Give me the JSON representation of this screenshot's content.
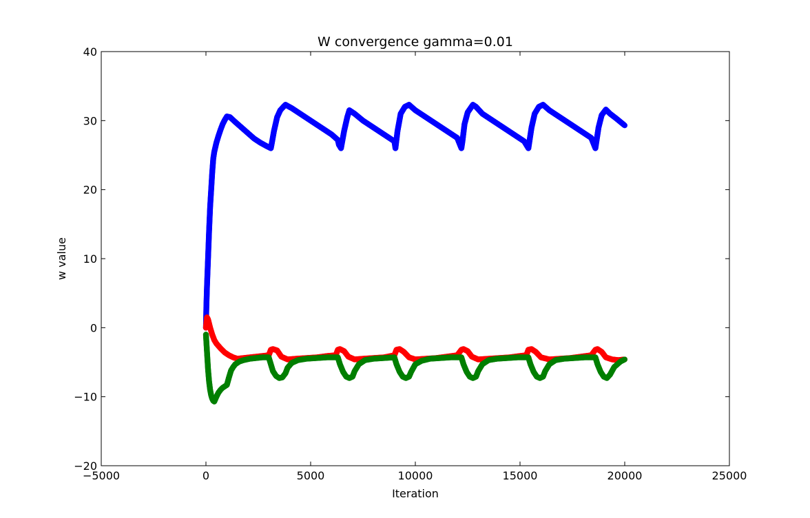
{
  "chart_data": {
    "type": "scatter",
    "title": "W convergence gamma=0.01",
    "xlabel": "Iteration",
    "ylabel": "w value",
    "xlim": [
      -5000,
      25000
    ],
    "ylim": [
      -20,
      40
    ],
    "xticks": [
      -5000,
      0,
      5000,
      10000,
      15000,
      20000,
      25000
    ],
    "xtick_labels": [
      "−5000",
      "0",
      "5000",
      "10000",
      "15000",
      "20000",
      "25000"
    ],
    "yticks": [
      -20,
      -10,
      0,
      10,
      20,
      30,
      40
    ],
    "ytick_labels": [
      "−20",
      "−10",
      "0",
      "10",
      "20",
      "30",
      "40"
    ],
    "grid": false,
    "series": [
      {
        "color": "#0000ff",
        "x": [
          0,
          20,
          50,
          100,
          150,
          200,
          250,
          300,
          350,
          400,
          500,
          600,
          700,
          800,
          900,
          1000,
          1150,
          1400,
          1700,
          2000,
          2300,
          2600,
          2900,
          3100,
          3150,
          3250,
          3400,
          3550,
          3700,
          3800,
          4100,
          4500,
          5000,
          5500,
          6000,
          6300,
          6350,
          6450,
          6600,
          6750,
          6850,
          7100,
          7500,
          8000,
          8500,
          9000,
          9050,
          9150,
          9300,
          9500,
          9700,
          10000,
          10500,
          11000,
          11500,
          12000,
          12200,
          12250,
          12350,
          12500,
          12750,
          12900,
          13200,
          13700,
          14200,
          14700,
          15200,
          15400,
          15450,
          15550,
          15700,
          15900,
          16100,
          16400,
          16900,
          17400,
          17900,
          18400,
          18600,
          18650,
          18750,
          18900,
          19100,
          19300,
          19600,
          20000
        ],
        "y": [
          0,
          3,
          6,
          10,
          14,
          17.5,
          20,
          22.5,
          24.5,
          25.5,
          26.8,
          27.8,
          28.7,
          29.5,
          30.1,
          30.6,
          30.5,
          29.8,
          29,
          28.2,
          27.4,
          26.8,
          26.3,
          26,
          26.8,
          28.5,
          30.5,
          31.5,
          32,
          32.3,
          31.8,
          31,
          30,
          29,
          28,
          27.2,
          26.5,
          26,
          28.5,
          30.5,
          31.5,
          31,
          30,
          29,
          28,
          27,
          26,
          28.5,
          31,
          32,
          32.3,
          31.5,
          30.5,
          29.5,
          28.5,
          27.5,
          26,
          27,
          29.5,
          31.2,
          32.3,
          32,
          31,
          30,
          29,
          28,
          27,
          26,
          27,
          29,
          31,
          32,
          32.3,
          31.5,
          30.5,
          29.5,
          28.5,
          27.5,
          26,
          27,
          29,
          30.8,
          31.6,
          31,
          30.3,
          29.3
        ]
      },
      {
        "color": "#ff0000",
        "x": [
          0,
          50,
          100,
          200,
          300,
          400,
          500,
          700,
          900,
          1100,
          1300,
          1500,
          1800,
          2100,
          2400,
          2700,
          3000,
          3100,
          3200,
          3400,
          3600,
          3900,
          4300,
          4800,
          5300,
          5800,
          6200,
          6300,
          6400,
          6600,
          6800,
          7100,
          7500,
          8000,
          8500,
          9000,
          9100,
          9250,
          9450,
          9700,
          10000,
          10500,
          11000,
          11500,
          12000,
          12200,
          12300,
          12500,
          12700,
          13000,
          13500,
          14000,
          14500,
          15000,
          15300,
          15400,
          15550,
          15750,
          16000,
          16400,
          16900,
          17400,
          17900,
          18400,
          18600,
          18700,
          18900,
          19100,
          19400,
          19700,
          20000
        ],
        "y": [
          0,
          1.5,
          1.2,
          0,
          -1,
          -1.8,
          -2.3,
          -3,
          -3.6,
          -4,
          -4.3,
          -4.5,
          -4.4,
          -4.3,
          -4.2,
          -4.1,
          -4,
          -3.2,
          -3.1,
          -3.3,
          -4.2,
          -4.6,
          -4.5,
          -4.4,
          -4.3,
          -4.1,
          -4,
          -3.2,
          -3.1,
          -3.4,
          -4.2,
          -4.6,
          -4.5,
          -4.4,
          -4.3,
          -4,
          -3.2,
          -3.1,
          -3.5,
          -4.3,
          -4.6,
          -4.5,
          -4.4,
          -4.2,
          -4,
          -3.2,
          -3.1,
          -3.4,
          -4.2,
          -4.6,
          -4.5,
          -4.4,
          -4.3,
          -4.1,
          -4,
          -3.2,
          -3.1,
          -3.5,
          -4.3,
          -4.6,
          -4.5,
          -4.4,
          -4.2,
          -4,
          -3.2,
          -3.1,
          -3.5,
          -4.3,
          -4.6,
          -4.7,
          -4.6
        ]
      },
      {
        "color": "#007f00",
        "x": [
          0,
          30,
          60,
          100,
          150,
          200,
          250,
          300,
          350,
          400,
          500,
          600,
          700,
          800,
          1000,
          1100,
          1200,
          1300,
          1400,
          1600,
          1800,
          2100,
          2400,
          2700,
          3000,
          3100,
          3200,
          3350,
          3500,
          3650,
          3800,
          3900,
          4100,
          4400,
          4800,
          5300,
          5800,
          6300,
          6400,
          6550,
          6700,
          6850,
          7000,
          7100,
          7300,
          7600,
          8000,
          8500,
          9000,
          9100,
          9250,
          9400,
          9550,
          9700,
          9800,
          10000,
          10300,
          10700,
          11200,
          11700,
          12200,
          12300,
          12450,
          12600,
          12750,
          12900,
          13000,
          13200,
          13500,
          13900,
          14400,
          14900,
          15400,
          15500,
          15650,
          15800,
          15950,
          16100,
          16200,
          16400,
          16700,
          17100,
          17600,
          18100,
          18600,
          18700,
          18850,
          19000,
          19150,
          19300,
          19500,
          19800,
          20000
        ],
        "y": [
          -1,
          -2.5,
          -4,
          -6,
          -7.8,
          -9,
          -9.8,
          -10.3,
          -10.6,
          -10.7,
          -10,
          -9.4,
          -9,
          -8.7,
          -8.3,
          -7.2,
          -6.2,
          -5.7,
          -5.3,
          -4.9,
          -4.7,
          -4.5,
          -4.4,
          -4.3,
          -4.3,
          -5.3,
          -6.3,
          -7,
          -7.3,
          -7.2,
          -6.6,
          -5.8,
          -5.1,
          -4.7,
          -4.5,
          -4.4,
          -4.3,
          -4.3,
          -5.3,
          -6.4,
          -7.1,
          -7.3,
          -7.1,
          -6.3,
          -5.3,
          -4.7,
          -4.5,
          -4.4,
          -4.3,
          -5.3,
          -6.4,
          -7.1,
          -7.3,
          -7.1,
          -6.4,
          -5.3,
          -4.8,
          -4.5,
          -4.4,
          -4.3,
          -4.3,
          -5.3,
          -6.4,
          -7.1,
          -7.3,
          -7.1,
          -6.3,
          -5.3,
          -4.7,
          -4.5,
          -4.4,
          -4.3,
          -4.3,
          -5.3,
          -6.4,
          -7.1,
          -7.3,
          -7.1,
          -6.3,
          -5.3,
          -4.7,
          -4.5,
          -4.4,
          -4.3,
          -4.3,
          -5.3,
          -6.4,
          -7.1,
          -7.3,
          -6.8,
          -5.7,
          -4.9,
          -4.6
        ]
      }
    ]
  }
}
